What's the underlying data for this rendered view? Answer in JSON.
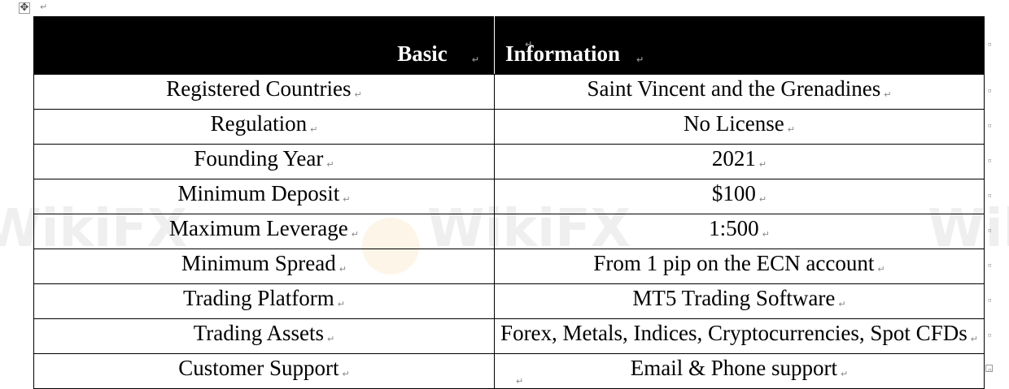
{
  "table": {
    "headers": [
      "Basic",
      "Information"
    ],
    "rows": [
      [
        "Registered Countries",
        "Saint Vincent and the Grenadines"
      ],
      [
        "Regulation",
        "No License"
      ],
      [
        "Founding Year",
        "2021"
      ],
      [
        "Minimum Deposit",
        "$100"
      ],
      [
        "Maximum Leverage",
        "1:500"
      ],
      [
        "Minimum Spread",
        "From 1 pip on the ECN account"
      ],
      [
        "Trading Platform",
        "MT5 Trading Software"
      ],
      [
        "Trading Assets",
        "Forex, Metals, Indices, Cryptocurrencies, Spot CFDs"
      ],
      [
        "Customer Support",
        "Email & Phone support"
      ]
    ]
  },
  "watermark": "WikiFX",
  "colors": {
    "header_bg": "#000000",
    "header_text": "#ffffff"
  }
}
